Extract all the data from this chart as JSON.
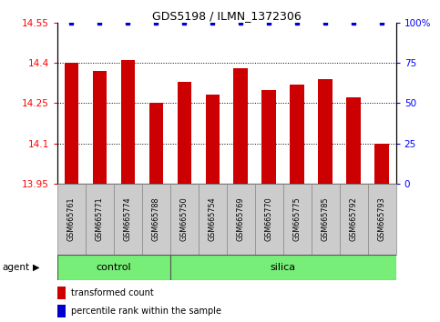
{
  "title": "GDS5198 / ILMN_1372306",
  "samples": [
    "GSM665761",
    "GSM665771",
    "GSM665774",
    "GSM665788",
    "GSM665750",
    "GSM665754",
    "GSM665769",
    "GSM665770",
    "GSM665775",
    "GSM665785",
    "GSM665792",
    "GSM665793"
  ],
  "red_values": [
    14.4,
    14.37,
    14.41,
    14.25,
    14.33,
    14.28,
    14.38,
    14.3,
    14.32,
    14.34,
    14.27,
    14.1
  ],
  "blue_values": [
    100,
    100,
    100,
    100,
    100,
    100,
    100,
    100,
    100,
    100,
    100,
    100
  ],
  "ylim_left": [
    13.95,
    14.55
  ],
  "ylim_right": [
    0,
    100
  ],
  "yticks_left": [
    13.95,
    14.1,
    14.25,
    14.4,
    14.55
  ],
  "yticks_right": [
    0,
    25,
    50,
    75,
    100
  ],
  "yticklabels_left": [
    "13.95",
    "14.1",
    "14.25",
    "14.4",
    "14.55"
  ],
  "yticklabels_right": [
    "0",
    "25",
    "50",
    "75",
    "100%"
  ],
  "dotted_lines": [
    14.1,
    14.25,
    14.4
  ],
  "bar_color": "#cc0000",
  "dot_color": "#0000cc",
  "n_control": 4,
  "n_silica": 8,
  "control_color": "#77ee77",
  "silica_color": "#77ee77",
  "agent_label": "agent",
  "control_label": "control",
  "silica_label": "silica",
  "legend_red": "transformed count",
  "legend_blue": "percentile rank within the sample",
  "background_color": "#ffffff",
  "sample_box_color": "#cccccc",
  "bar_width": 0.5,
  "title_fontsize": 9,
  "axis_fontsize": 7.5,
  "sample_fontsize": 5.8,
  "strip_fontsize": 8,
  "legend_fontsize": 7
}
